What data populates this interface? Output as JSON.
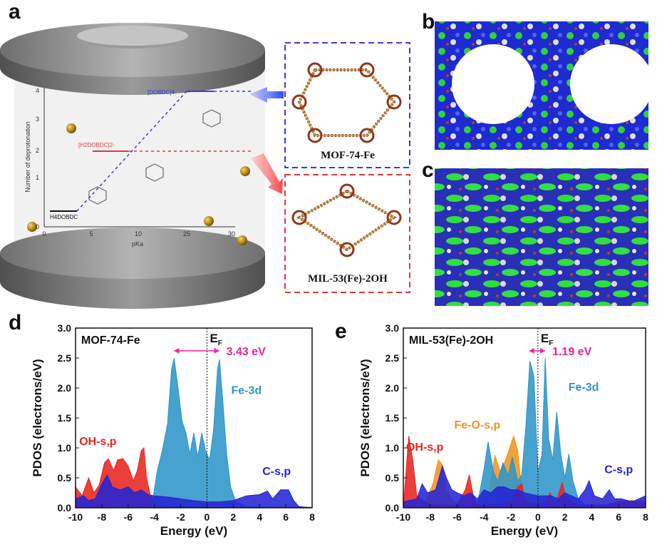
{
  "panels": {
    "a": "a",
    "b": "b",
    "c": "c",
    "d": "d",
    "e": "e"
  },
  "panel_a": {
    "box_top_label": "MOF-74-Fe",
    "box_bottom_label": "MIL-53(Fe)-2OH",
    "colors": {
      "blue_box": "#3a3ad6",
      "red_box": "#e03a3a",
      "cylinder": "#8a8a8a"
    },
    "inset": {
      "ylabel": "Number of deprotonation",
      "xlabel": "pKa",
      "yticks": [
        "0",
        "1",
        "2",
        "3",
        "4"
      ],
      "xticks": [
        "0",
        "5",
        "10",
        "25",
        "30"
      ],
      "species": [
        "H4DOBDC",
        "[H2DOBDC]2-",
        "[DOBDC]4-"
      ]
    }
  },
  "panel_b": {
    "colors": [
      "#1c2ad8",
      "#29c93a",
      "#d4d4d4",
      "#c0392b"
    ]
  },
  "panel_c": {
    "colors": [
      "#1c2ad8",
      "#29c93a",
      "#d4d4d4",
      "#c0392b"
    ]
  },
  "chart_data": [
    {
      "type": "area",
      "title": "MOF-74-Fe",
      "xlabel": "Energy (eV)",
      "ylabel": "PDOS (electrons/eV)",
      "xlim": [
        -10,
        8
      ],
      "ylim": [
        0,
        3.0
      ],
      "xticks": [
        "-10",
        "-8",
        "-6",
        "-4",
        "-2",
        "0",
        "2",
        "4",
        "6",
        "8"
      ],
      "yticks": [
        "0.0",
        "0.5",
        "1.0",
        "1.5",
        "2.0",
        "2.5",
        "3.0"
      ],
      "fermi_label": "E",
      "fermi_sub": "F",
      "gap_label": "3.43 eV",
      "gap": [
        -2.5,
        0.93
      ],
      "series": [
        {
          "name": "OH-s,p",
          "color": "#e8241e",
          "x": [
            -10,
            -9.5,
            -9,
            -8.6,
            -8.2,
            -7.8,
            -7.5,
            -7.1,
            -6.8,
            -6.4,
            -6.0,
            -5.6,
            -5.3,
            -5.0,
            -4.8,
            -4.6,
            -4.3,
            -4.0,
            -3.5,
            -3.0,
            -2.0,
            0,
            2,
            4,
            6,
            8
          ],
          "y": [
            0.35,
            0.2,
            0.5,
            0.25,
            0.38,
            0.75,
            0.82,
            0.62,
            0.8,
            0.82,
            0.7,
            0.45,
            0.62,
            0.95,
            1.0,
            0.5,
            0.2,
            0.08,
            0.05,
            0.03,
            0.02,
            0.01,
            0.01,
            0.01,
            0.01,
            0.01
          ]
        },
        {
          "name": "Fe-3d",
          "color": "#2f95c8",
          "x": [
            -10,
            -5,
            -4.2,
            -3.8,
            -3.4,
            -3.0,
            -2.7,
            -2.5,
            -2.2,
            -1.9,
            -1.6,
            -1.3,
            -1.0,
            -0.7,
            -0.4,
            -0.1,
            0.2,
            0.5,
            0.8,
            0.95,
            1.2,
            1.5,
            1.8,
            2.2,
            3,
            8
          ],
          "y": [
            0,
            0,
            0.02,
            0.6,
            0.95,
            1.4,
            2.3,
            2.5,
            2.0,
            1.45,
            1.25,
            0.9,
            1.25,
            0.85,
            1.25,
            0.95,
            0.8,
            1.3,
            2.3,
            2.48,
            1.8,
            0.9,
            0.35,
            0.1,
            0.02,
            0
          ]
        },
        {
          "name": "C-s,p",
          "color": "#2424d4",
          "x": [
            -10,
            -9.4,
            -9,
            -8.5,
            -8.0,
            -7.6,
            -7.2,
            -6.6,
            -6,
            -5.5,
            -5,
            -4.5,
            -4,
            -3,
            -2,
            -1,
            0,
            1,
            2,
            3,
            4,
            4.6,
            5,
            5.6,
            6.2,
            6.6,
            7,
            8
          ],
          "y": [
            0.15,
            0.2,
            0.12,
            0.15,
            0.4,
            0.55,
            0.35,
            0.3,
            0.35,
            0.25,
            0.3,
            0.22,
            0.2,
            0.18,
            0.15,
            0.12,
            0.1,
            0.1,
            0.12,
            0.2,
            0.22,
            0.28,
            0.15,
            0.3,
            0.3,
            0.12,
            0.02,
            0
          ]
        }
      ],
      "annotations": [
        {
          "text": "OH-s,p",
          "x": -8.3,
          "y": 1.05,
          "color": "#e8241e"
        },
        {
          "text": "Fe-3d",
          "x": 3.0,
          "y": 1.9,
          "color": "#2f95c8"
        },
        {
          "text": "C-s,p",
          "x": 5.3,
          "y": 0.55,
          "color": "#2424d4"
        }
      ]
    },
    {
      "type": "area",
      "title": "MIL-53(Fe)-2OH",
      "xlabel": "Energy (eV)",
      "ylabel": "PDOS (electrons/eV)",
      "xlim": [
        -10,
        8
      ],
      "ylim": [
        0,
        3.0
      ],
      "xticks": [
        "-10",
        "-8",
        "-6",
        "-4",
        "-2",
        "0",
        "2",
        "4",
        "6",
        "8"
      ],
      "yticks": [
        "0.0",
        "0.5",
        "1.0",
        "1.5",
        "2.0",
        "2.5",
        "3.0"
      ],
      "fermi_label": "E",
      "fermi_sub": "F",
      "gap_label": "1.19 eV",
      "gap": [
        -0.65,
        0.54
      ],
      "series": [
        {
          "name": "Fe-O-s,p",
          "color": "#ef9521",
          "x": [
            -10,
            -8.5,
            -7.8,
            -7.4,
            -7.1,
            -6.8,
            -6.3,
            -5.5,
            -4.5,
            -4.0,
            -3.6,
            -3.2,
            -2.8,
            -2.4,
            -2.1,
            -1.8,
            -1.5,
            -1.2,
            -0.8,
            -0.4,
            0,
            1,
            2,
            3,
            8
          ],
          "y": [
            0,
            0.02,
            0.4,
            0.8,
            0.72,
            0.3,
            0.1,
            0.05,
            0.05,
            0.1,
            0.25,
            0.88,
            0.6,
            0.8,
            1.0,
            1.2,
            0.95,
            0.3,
            0.1,
            0.05,
            0.02,
            0.02,
            0.02,
            0.01,
            0
          ]
        },
        {
          "name": "Fe-3d",
          "color": "#2f95c8",
          "x": [
            -10,
            -5,
            -4.5,
            -4.0,
            -3.7,
            -3.3,
            -3.0,
            -2.6,
            -2.2,
            -1.9,
            -1.5,
            -1.2,
            -0.9,
            -0.6,
            -0.3,
            0.0,
            0.3,
            0.54,
            0.8,
            1.1,
            1.4,
            1.7,
            2.0,
            2.3,
            2.6,
            3.0,
            3.5,
            8
          ],
          "y": [
            0,
            0,
            0.05,
            0.65,
            1.1,
            0.6,
            0.45,
            0.75,
            0.55,
            0.85,
            0.45,
            0.55,
            1.35,
            2.45,
            2.2,
            0.6,
            0.9,
            2.5,
            1.15,
            0.8,
            1.6,
            0.9,
            0.5,
            0.9,
            0.45,
            0.15,
            0.05,
            0
          ]
        },
        {
          "name": "OH-s,p",
          "color": "#e8241e",
          "x": [
            -10,
            -9.8,
            -9.6,
            -9.3,
            -9,
            -8,
            -6,
            -5.4,
            -5.1,
            -4.8,
            -4.5,
            -3.0,
            -2.0,
            -1.5,
            -1.2,
            -0.9,
            0,
            0.6,
            0.9,
            1.2,
            1.5,
            1.8,
            2.1,
            3,
            5,
            6,
            7,
            8
          ],
          "y": [
            0.0,
            0.6,
            1.2,
            0.8,
            0.2,
            0.05,
            0.05,
            0.3,
            0.55,
            0.2,
            0.05,
            0.05,
            0.1,
            0.35,
            0.4,
            0.1,
            0.05,
            0.1,
            0.25,
            0.05,
            0.2,
            0.42,
            0.15,
            0.05,
            0.05,
            0.1,
            0.12,
            0.1
          ]
        },
        {
          "name": "C-s,p",
          "color": "#2424d4",
          "x": [
            -10,
            -9,
            -8.6,
            -8.2,
            -7.6,
            -7.1,
            -6.8,
            -6.4,
            -6.0,
            -5.5,
            -5.0,
            -4.5,
            -4.0,
            -3.5,
            -3.0,
            -2.5,
            -2.0,
            -1.5,
            -1.0,
            0,
            0.5,
            1,
            1.5,
            2,
            2.5,
            3.0,
            3.5,
            3.8,
            4.2,
            4.8,
            5.3,
            5.7,
            6.2,
            7,
            8
          ],
          "y": [
            0.1,
            0.15,
            0.4,
            0.25,
            0.3,
            0.7,
            0.5,
            0.3,
            0.25,
            0.2,
            0.25,
            0.15,
            0.3,
            0.25,
            0.35,
            0.35,
            0.3,
            0.3,
            0.25,
            0.2,
            0.2,
            0.2,
            0.15,
            0.25,
            0.2,
            0.15,
            0.3,
            0.45,
            0.2,
            0.15,
            0.3,
            0.15,
            0.15,
            0.1,
            0.2
          ]
        }
      ],
      "annotations": [
        {
          "text": "Fe-O-s,p",
          "x": -4.5,
          "y": 1.32,
          "color": "#ef9521"
        },
        {
          "text": "OH-s,p",
          "x": -8.4,
          "y": 0.95,
          "color": "#e8241e"
        },
        {
          "text": "Fe-3d",
          "x": 3.4,
          "y": 1.95,
          "color": "#2f95c8"
        },
        {
          "text": "C-s,p",
          "x": 6.0,
          "y": 0.58,
          "color": "#2424d4"
        }
      ]
    }
  ]
}
